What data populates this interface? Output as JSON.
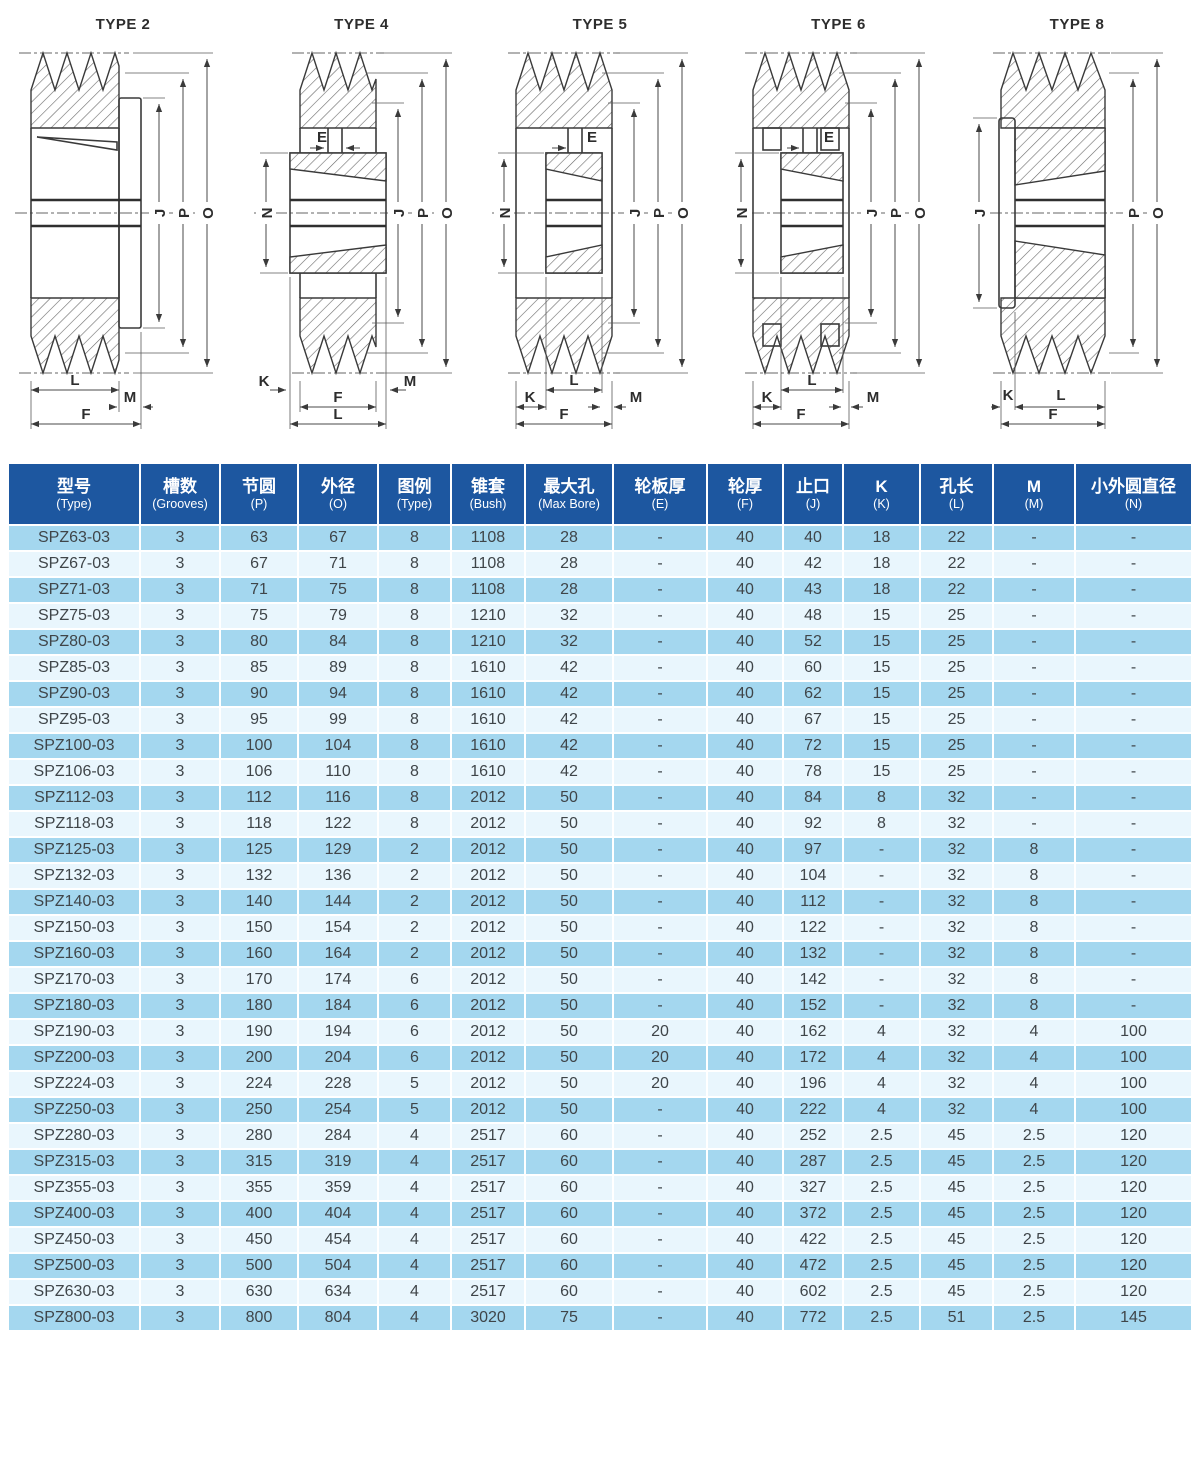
{
  "diagrams": [
    {
      "title": "TYPE 2",
      "dims": {
        "right": [
          "J",
          "P",
          "O"
        ],
        "bottom": [
          "L",
          "M",
          "F"
        ]
      }
    },
    {
      "title": "TYPE 4",
      "dims": {
        "inner": [
          "E"
        ],
        "left": [
          "N"
        ],
        "right": [
          "J",
          "P",
          "O"
        ],
        "bottom": [
          "K",
          "M",
          "F",
          "L"
        ]
      }
    },
    {
      "title": "TYPE 5",
      "dims": {
        "inner": [
          "E"
        ],
        "left": [
          "N"
        ],
        "right": [
          "J",
          "P",
          "O"
        ],
        "bottom": [
          "L",
          "K",
          "M",
          "F"
        ]
      }
    },
    {
      "title": "TYPE 6",
      "dims": {
        "inner": [
          "E"
        ],
        "left": [
          "N"
        ],
        "right": [
          "J",
          "P",
          "O"
        ],
        "bottom": [
          "L",
          "K",
          "M",
          "F"
        ]
      }
    },
    {
      "title": "TYPE 8",
      "dims": {
        "left": [
          "J"
        ],
        "right": [
          "P",
          "O"
        ],
        "bottom": [
          "K",
          "L",
          "F"
        ]
      }
    }
  ],
  "table": {
    "colors": {
      "header_bg": "#1d57a0",
      "row_odd": "#a4d7ef",
      "row_even": "#e9f6fd"
    },
    "columns": [
      {
        "zh": "型号",
        "en": "(Type)"
      },
      {
        "zh": "槽数",
        "en": "(Grooves)"
      },
      {
        "zh": "节圆",
        "en": "(P)"
      },
      {
        "zh": "外径",
        "en": "(O)"
      },
      {
        "zh": "图例",
        "en": "(Type)"
      },
      {
        "zh": "锥套",
        "en": "(Bush)"
      },
      {
        "zh": "最大孔",
        "en": "(Max Bore)"
      },
      {
        "zh": "轮板厚",
        "en": "(E)"
      },
      {
        "zh": "轮厚",
        "en": "(F)"
      },
      {
        "zh": "止口",
        "en": "(J)"
      },
      {
        "zh": "K",
        "en": "(K)"
      },
      {
        "zh": "孔长",
        "en": "(L)"
      },
      {
        "zh": "M",
        "en": "(M)"
      },
      {
        "zh": "小外圆直径",
        "en": "(N)"
      }
    ],
    "rows": [
      [
        "SPZ63-03",
        "3",
        "63",
        "67",
        "8",
        "1108",
        "28",
        "-",
        "40",
        "40",
        "18",
        "22",
        "-",
        "-"
      ],
      [
        "SPZ67-03",
        "3",
        "67",
        "71",
        "8",
        "1108",
        "28",
        "-",
        "40",
        "42",
        "18",
        "22",
        "-",
        "-"
      ],
      [
        "SPZ71-03",
        "3",
        "71",
        "75",
        "8",
        "1108",
        "28",
        "-",
        "40",
        "43",
        "18",
        "22",
        "-",
        "-"
      ],
      [
        "SPZ75-03",
        "3",
        "75",
        "79",
        "8",
        "1210",
        "32",
        "-",
        "40",
        "48",
        "15",
        "25",
        "-",
        "-"
      ],
      [
        "SPZ80-03",
        "3",
        "80",
        "84",
        "8",
        "1210",
        "32",
        "-",
        "40",
        "52",
        "15",
        "25",
        "-",
        "-"
      ],
      [
        "SPZ85-03",
        "3",
        "85",
        "89",
        "8",
        "1610",
        "42",
        "-",
        "40",
        "60",
        "15",
        "25",
        "-",
        "-"
      ],
      [
        "SPZ90-03",
        "3",
        "90",
        "94",
        "8",
        "1610",
        "42",
        "-",
        "40",
        "62",
        "15",
        "25",
        "-",
        "-"
      ],
      [
        "SPZ95-03",
        "3",
        "95",
        "99",
        "8",
        "1610",
        "42",
        "-",
        "40",
        "67",
        "15",
        "25",
        "-",
        "-"
      ],
      [
        "SPZ100-03",
        "3",
        "100",
        "104",
        "8",
        "1610",
        "42",
        "-",
        "40",
        "72",
        "15",
        "25",
        "-",
        "-"
      ],
      [
        "SPZ106-03",
        "3",
        "106",
        "110",
        "8",
        "1610",
        "42",
        "-",
        "40",
        "78",
        "15",
        "25",
        "-",
        "-"
      ],
      [
        "SPZ112-03",
        "3",
        "112",
        "116",
        "8",
        "2012",
        "50",
        "-",
        "40",
        "84",
        "8",
        "32",
        "-",
        "-"
      ],
      [
        "SPZ118-03",
        "3",
        "118",
        "122",
        "8",
        "2012",
        "50",
        "-",
        "40",
        "92",
        "8",
        "32",
        "-",
        "-"
      ],
      [
        "SPZ125-03",
        "3",
        "125",
        "129",
        "2",
        "2012",
        "50",
        "-",
        "40",
        "97",
        "-",
        "32",
        "8",
        "-"
      ],
      [
        "SPZ132-03",
        "3",
        "132",
        "136",
        "2",
        "2012",
        "50",
        "-",
        "40",
        "104",
        "-",
        "32",
        "8",
        "-"
      ],
      [
        "SPZ140-03",
        "3",
        "140",
        "144",
        "2",
        "2012",
        "50",
        "-",
        "40",
        "112",
        "-",
        "32",
        "8",
        "-"
      ],
      [
        "SPZ150-03",
        "3",
        "150",
        "154",
        "2",
        "2012",
        "50",
        "-",
        "40",
        "122",
        "-",
        "32",
        "8",
        "-"
      ],
      [
        "SPZ160-03",
        "3",
        "160",
        "164",
        "2",
        "2012",
        "50",
        "-",
        "40",
        "132",
        "-",
        "32",
        "8",
        "-"
      ],
      [
        "SPZ170-03",
        "3",
        "170",
        "174",
        "6",
        "2012",
        "50",
        "-",
        "40",
        "142",
        "-",
        "32",
        "8",
        "-"
      ],
      [
        "SPZ180-03",
        "3",
        "180",
        "184",
        "6",
        "2012",
        "50",
        "-",
        "40",
        "152",
        "-",
        "32",
        "8",
        "-"
      ],
      [
        "SPZ190-03",
        "3",
        "190",
        "194",
        "6",
        "2012",
        "50",
        "20",
        "40",
        "162",
        "4",
        "32",
        "4",
        "100"
      ],
      [
        "SPZ200-03",
        "3",
        "200",
        "204",
        "6",
        "2012",
        "50",
        "20",
        "40",
        "172",
        "4",
        "32",
        "4",
        "100"
      ],
      [
        "SPZ224-03",
        "3",
        "224",
        "228",
        "5",
        "2012",
        "50",
        "20",
        "40",
        "196",
        "4",
        "32",
        "4",
        "100"
      ],
      [
        "SPZ250-03",
        "3",
        "250",
        "254",
        "5",
        "2012",
        "50",
        "-",
        "40",
        "222",
        "4",
        "32",
        "4",
        "100"
      ],
      [
        "SPZ280-03",
        "3",
        "280",
        "284",
        "4",
        "2517",
        "60",
        "-",
        "40",
        "252",
        "2.5",
        "45",
        "2.5",
        "120"
      ],
      [
        "SPZ315-03",
        "3",
        "315",
        "319",
        "4",
        "2517",
        "60",
        "-",
        "40",
        "287",
        "2.5",
        "45",
        "2.5",
        "120"
      ],
      [
        "SPZ355-03",
        "3",
        "355",
        "359",
        "4",
        "2517",
        "60",
        "-",
        "40",
        "327",
        "2.5",
        "45",
        "2.5",
        "120"
      ],
      [
        "SPZ400-03",
        "3",
        "400",
        "404",
        "4",
        "2517",
        "60",
        "-",
        "40",
        "372",
        "2.5",
        "45",
        "2.5",
        "120"
      ],
      [
        "SPZ450-03",
        "3",
        "450",
        "454",
        "4",
        "2517",
        "60",
        "-",
        "40",
        "422",
        "2.5",
        "45",
        "2.5",
        "120"
      ],
      [
        "SPZ500-03",
        "3",
        "500",
        "504",
        "4",
        "2517",
        "60",
        "-",
        "40",
        "472",
        "2.5",
        "45",
        "2.5",
        "120"
      ],
      [
        "SPZ630-03",
        "3",
        "630",
        "634",
        "4",
        "2517",
        "60",
        "-",
        "40",
        "602",
        "2.5",
        "45",
        "2.5",
        "120"
      ],
      [
        "SPZ800-03",
        "3",
        "800",
        "804",
        "4",
        "3020",
        "75",
        "-",
        "40",
        "772",
        "2.5",
        "51",
        "2.5",
        "145"
      ]
    ]
  }
}
